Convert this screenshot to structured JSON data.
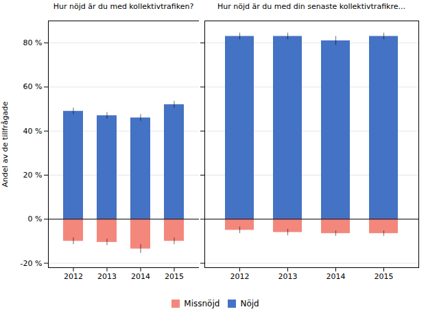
{
  "chart_data": [
    {
      "type": "bar",
      "title": "Hur nöjd är du med kollektivtrafiken?",
      "categories": [
        "2012",
        "2013",
        "2014",
        "2015"
      ],
      "series": [
        {
          "name": "Missnöjd",
          "color": "#F4877C",
          "values": [
            -10,
            -10.5,
            -13.5,
            -10
          ],
          "errors": [
            1.5,
            1.5,
            2.0,
            1.5
          ]
        },
        {
          "name": "Nöjd",
          "color": "#4472C4",
          "values": [
            49,
            47,
            46,
            52
          ],
          "errors": [
            1.5,
            1.5,
            1.5,
            1.5
          ]
        }
      ],
      "ylabel": "Andel av de tillfrågade",
      "ylim": [
        -22,
        90
      ],
      "yticks": [
        {
          "value": -20,
          "label": "-20 %"
        },
        {
          "value": 0,
          "label": "0 %"
        },
        {
          "value": 20,
          "label": "20 %"
        },
        {
          "value": 40,
          "label": "40 %"
        },
        {
          "value": 60,
          "label": "60 %"
        },
        {
          "value": 80,
          "label": "80 %"
        }
      ],
      "grid": true,
      "legend": "bottom"
    },
    {
      "type": "bar",
      "title": "Hur nöjd är du med din senaste kollektivtrafikre...",
      "categories": [
        "2012",
        "2013",
        "2014",
        "2015"
      ],
      "series": [
        {
          "name": "Missnöjd",
          "color": "#F4877C",
          "values": [
            -5,
            -6,
            -6.5,
            -6.5
          ],
          "errors": [
            1.5,
            1.5,
            1.2,
            1.2
          ]
        },
        {
          "name": "Nöjd",
          "color": "#4472C4",
          "values": [
            83,
            83,
            81,
            83
          ],
          "errors": [
            1.5,
            1.5,
            2.0,
            1.5
          ]
        }
      ],
      "ylim": [
        -22,
        90
      ],
      "yticks": [
        {
          "value": -20,
          "label": "-20 %"
        },
        {
          "value": 0,
          "label": "0 %"
        },
        {
          "value": 20,
          "label": "20 %"
        },
        {
          "value": 40,
          "label": "40 %"
        },
        {
          "value": 60,
          "label": "60 %"
        },
        {
          "value": 80,
          "label": "80 %"
        }
      ],
      "grid": true,
      "tick_labels": "x"
    }
  ]
}
